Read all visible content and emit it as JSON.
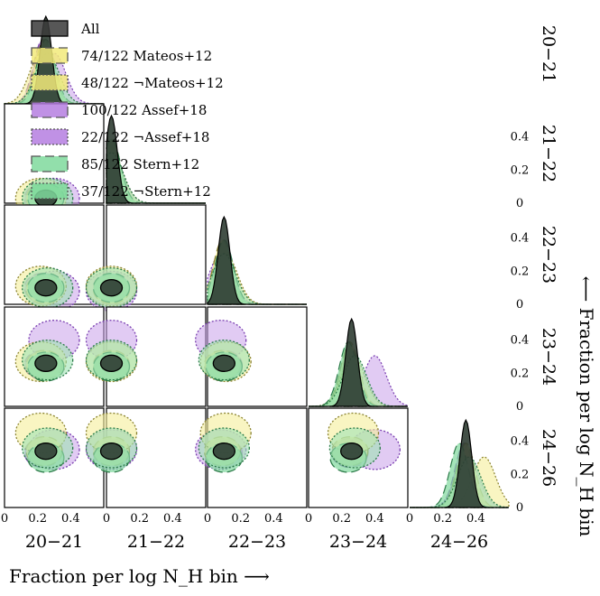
{
  "chart_data": {
    "type": "corner",
    "bins": [
      "20−21",
      "21−22",
      "22−23",
      "23−24",
      "24−26"
    ],
    "xlabel": "Fraction per log N_H bin ⟶",
    "ylabel": "⟵ Fraction per log N_H bin",
    "xlim": [
      0,
      0.6
    ],
    "ylim": [
      0,
      0.6
    ],
    "ticks": [
      "0",
      "0.2",
      "0.4"
    ],
    "tick_values": [
      0,
      0.2,
      0.4
    ],
    "legend": [
      {
        "label": "All",
        "color": "#3a3a3a",
        "dash": "solid"
      },
      {
        "label": "74/122 Mateos+12",
        "color": "#f2ea7a",
        "dash": "long"
      },
      {
        "label": "48/122 ¬Mateos+12",
        "color": "#f2ea7a",
        "dash": "short"
      },
      {
        "label": "100/122 Assef+18",
        "color": "#b57ee0",
        "dash": "long"
      },
      {
        "label": "22/122 ¬Assef+18",
        "color": "#b57ee0",
        "dash": "short"
      },
      {
        "label": "85/122 Stern+12",
        "color": "#7fd99c",
        "dash": "long"
      },
      {
        "label": "37/122 ¬Stern+12",
        "color": "#7fd99c",
        "dash": "short"
      }
    ],
    "marginal_peaks": [
      {
        "bin": "20−21",
        "All": 0.25,
        "Mateos+12": 0.24,
        "notMateos+12": 0.22,
        "Assef+18": 0.23,
        "notAssef+18": 0.3,
        "Stern+12": 0.25,
        "notStern+12": 0.26
      },
      {
        "bin": "21−22",
        "All": 0.03,
        "Mateos+12": 0.03,
        "notMateos+12": 0.03,
        "Assef+18": 0.03,
        "notAssef+18": 0.03,
        "Stern+12": 0.03,
        "notStern+12": 0.03
      },
      {
        "bin": "22−23",
        "All": 0.1,
        "Mateos+12": 0.09,
        "notMateos+12": 0.11,
        "Assef+18": 0.1,
        "notAssef+18": 0.08,
        "Stern+12": 0.1,
        "notStern+12": 0.1
      },
      {
        "bin": "23−24",
        "All": 0.26,
        "Mateos+12": 0.25,
        "notMateos+12": 0.27,
        "Assef+18": 0.25,
        "notAssef+18": 0.4,
        "Stern+12": 0.24,
        "notStern+12": 0.28
      },
      {
        "bin": "24−26",
        "All": 0.34,
        "Mateos+12": 0.34,
        "notMateos+12": 0.45,
        "Assef+18": 0.33,
        "notAssef+18": 0.35,
        "Stern+12": 0.3,
        "notStern+12": 0.36
      }
    ]
  }
}
